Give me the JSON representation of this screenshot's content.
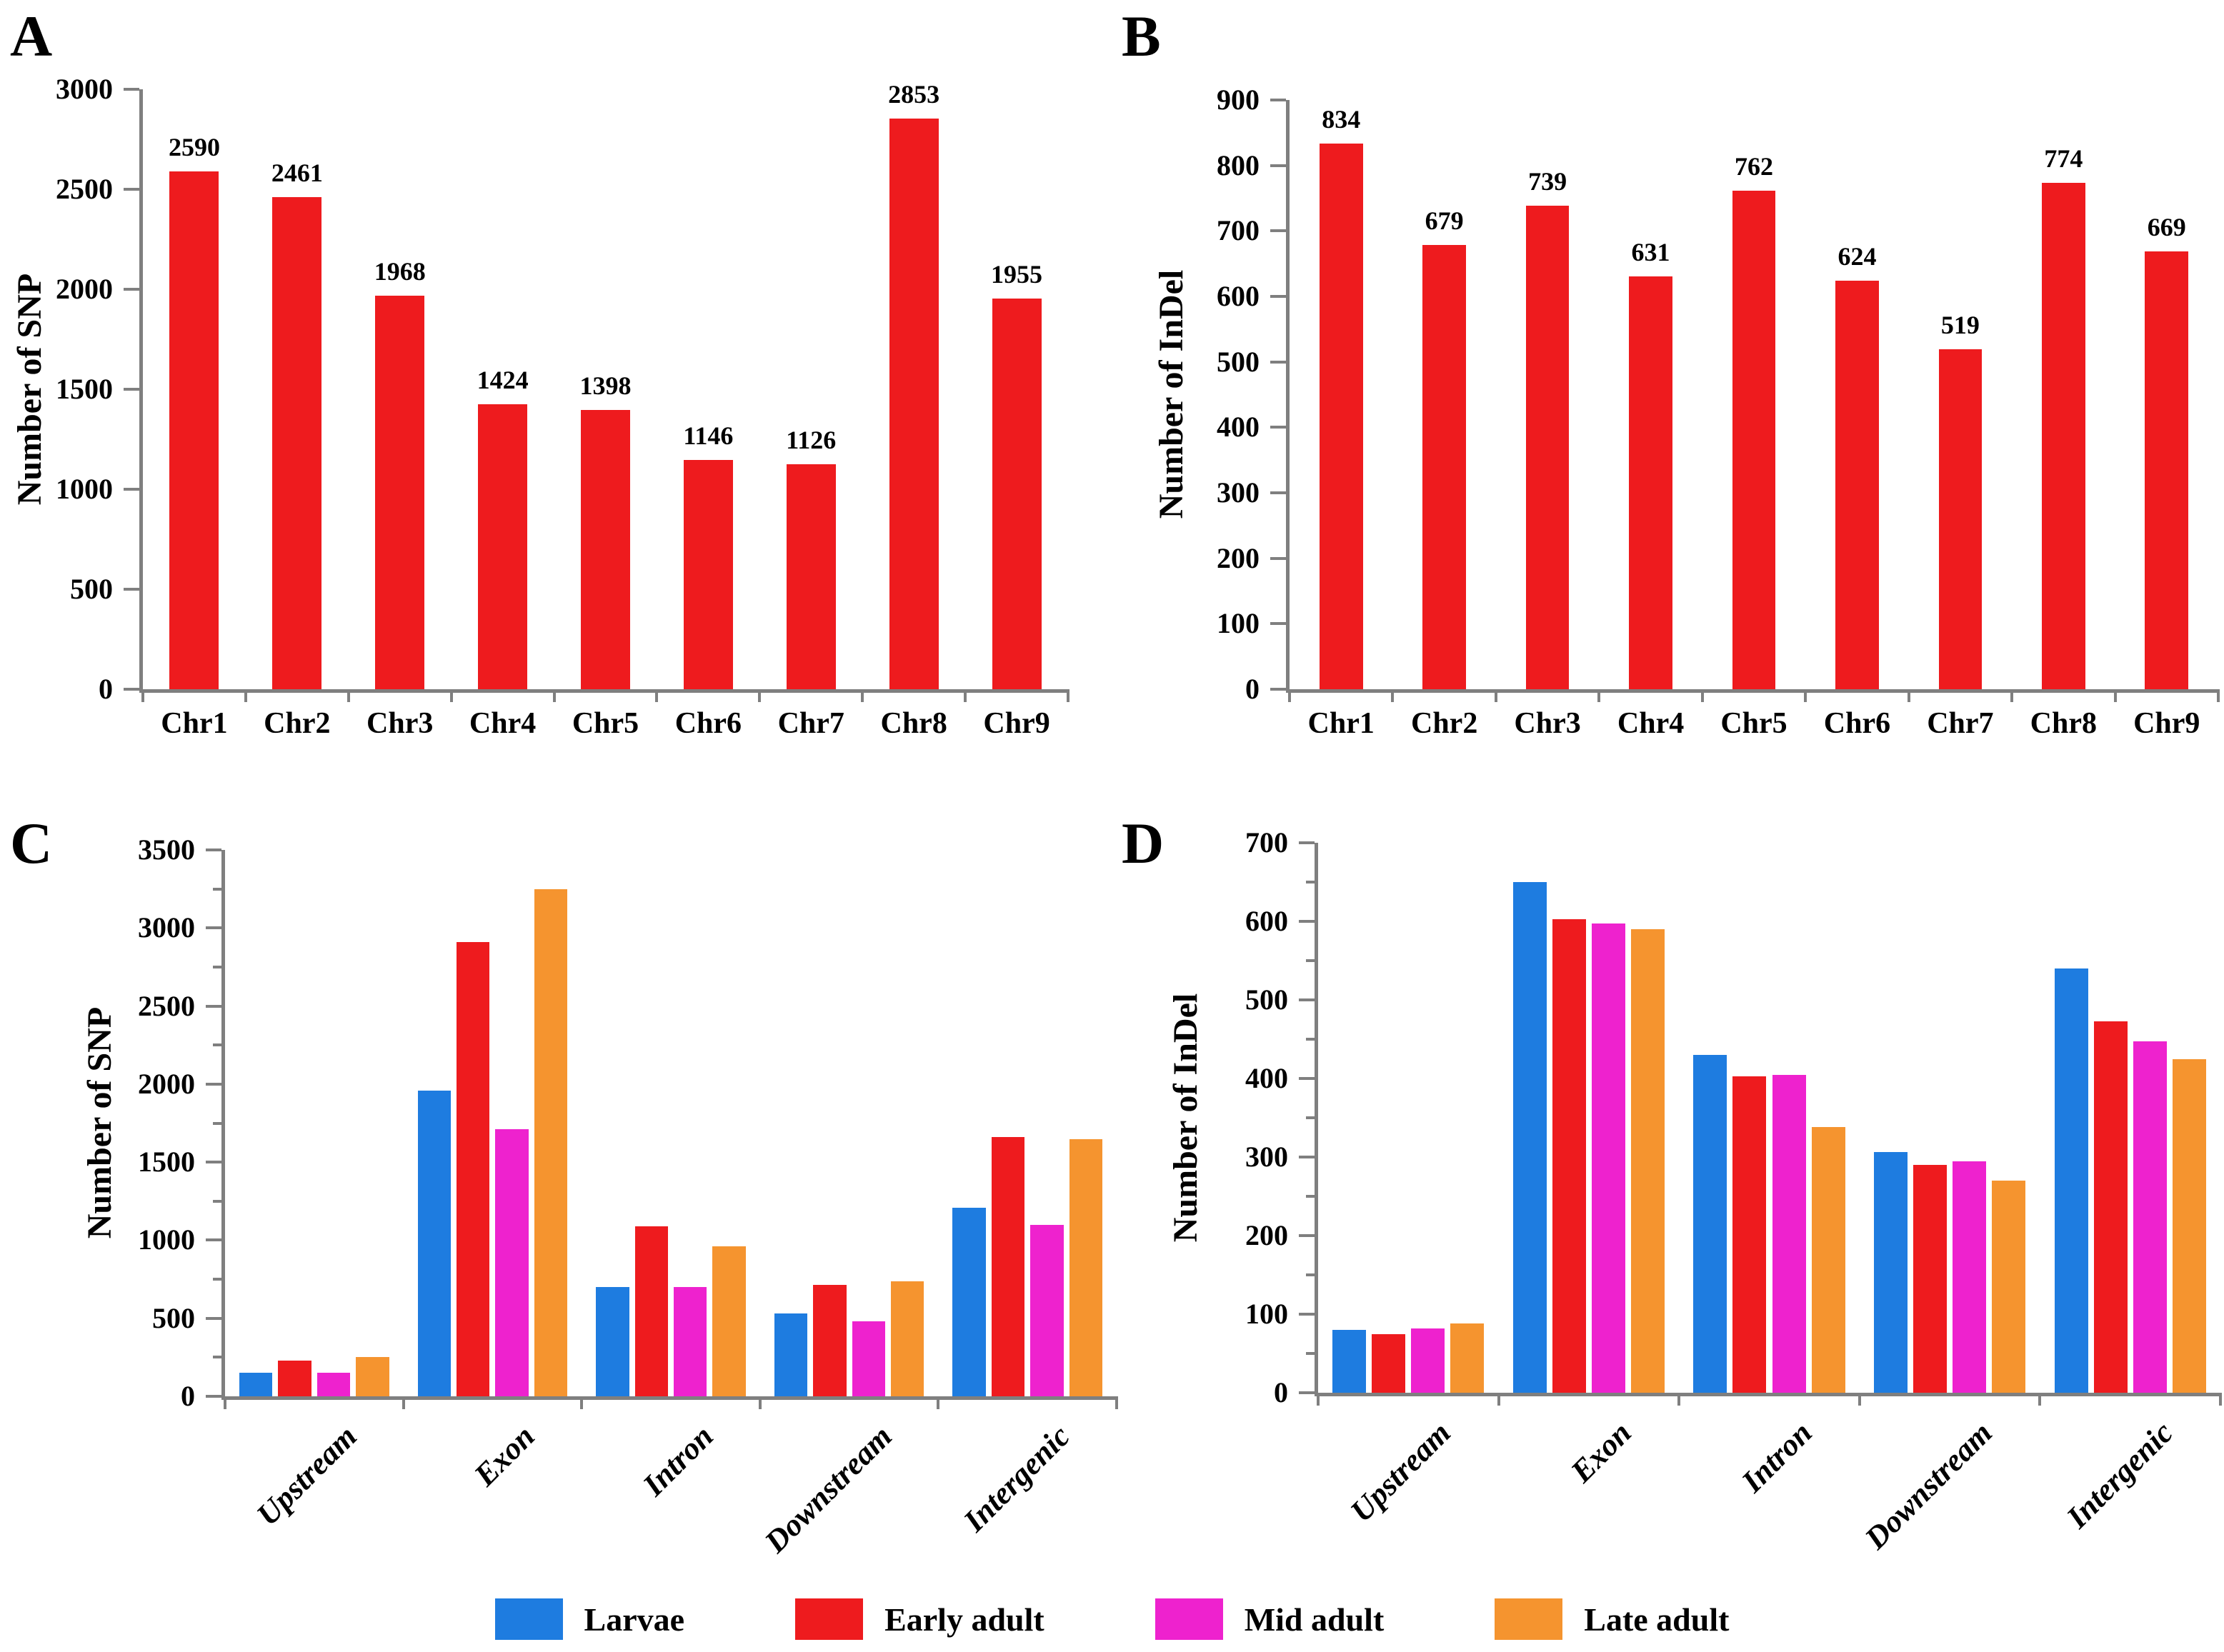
{
  "figure": {
    "axis_color": "#7f7f7f",
    "legend": {
      "items": [
        {
          "label": "Larvae",
          "color": "#1E7CE0"
        },
        {
          "label": "Early adult",
          "color": "#EE1B1E"
        },
        {
          "label": "Mid adult",
          "color": "#EE22CE"
        },
        {
          "label": "Late adult",
          "color": "#F5942F"
        }
      ]
    }
  },
  "chart_data": [
    {
      "id": "A",
      "panel_letter": "A",
      "type": "bar",
      "ylabel": "Number of SNP",
      "ylim": [
        0,
        3000
      ],
      "ytick_step": 500,
      "yticks": [
        "0",
        "500",
        "1000",
        "1500",
        "2000",
        "2500",
        "3000"
      ],
      "grid": false,
      "legend_position": "none",
      "categories": [
        "Chr1",
        "Chr2",
        "Chr3",
        "Chr4",
        "Chr5",
        "Chr6",
        "Chr7",
        "Chr8",
        "Chr9"
      ],
      "values": [
        2590,
        2461,
        1968,
        1424,
        1398,
        1146,
        1126,
        2853,
        1955
      ],
      "value_labels": [
        "2590",
        "2461",
        "1968",
        "1424",
        "1398",
        "1146",
        "1126",
        "2853",
        "1955"
      ],
      "bar_color": "#EE1B1E"
    },
    {
      "id": "B",
      "panel_letter": "B",
      "type": "bar",
      "ylabel": "Number of InDel",
      "ylim": [
        0,
        900
      ],
      "ytick_step": 100,
      "yticks": [
        "0",
        "100",
        "200",
        "300",
        "400",
        "500",
        "600",
        "700",
        "800",
        "900"
      ],
      "grid": false,
      "legend_position": "none",
      "categories": [
        "Chr1",
        "Chr2",
        "Chr3",
        "Chr4",
        "Chr5",
        "Chr6",
        "Chr7",
        "Chr8",
        "Chr9"
      ],
      "values": [
        834,
        679,
        739,
        631,
        762,
        624,
        519,
        774,
        669
      ],
      "value_labels": [
        "834",
        "679",
        "739",
        "631",
        "762",
        "624",
        "519",
        "774",
        "669"
      ],
      "bar_color": "#EE1B1E"
    },
    {
      "id": "C",
      "panel_letter": "C",
      "type": "bar",
      "grouped": true,
      "ylabel": "Number of SNP",
      "ylim": [
        0,
        3500
      ],
      "ytick_step": 500,
      "minor_tick_step": 250,
      "yticks": [
        "0",
        "500",
        "1000",
        "1500",
        "2000",
        "2500",
        "3000",
        "3500"
      ],
      "grid": false,
      "legend_position": "bottom-shared",
      "categories": [
        "Upstream",
        "Exon",
        "Intron",
        "Downstream",
        "Intergenic"
      ],
      "series": [
        {
          "name": "Larvae",
          "color": "#1E7CE0",
          "values": [
            150,
            1960,
            700,
            530,
            1210
          ]
        },
        {
          "name": "Early adult",
          "color": "#EE1B1E",
          "values": [
            230,
            2910,
            1090,
            715,
            1660
          ]
        },
        {
          "name": "Mid adult",
          "color": "#EE22CE",
          "values": [
            150,
            1710,
            700,
            480,
            1100
          ]
        },
        {
          "name": "Late adult",
          "color": "#F5942F",
          "values": [
            250,
            3250,
            960,
            735,
            1645
          ]
        }
      ]
    },
    {
      "id": "D",
      "panel_letter": "D",
      "type": "bar",
      "grouped": true,
      "ylabel": "Number of InDel",
      "ylim": [
        0,
        700
      ],
      "ytick_step": 100,
      "minor_tick_step": 50,
      "yticks": [
        "0",
        "100",
        "200",
        "300",
        "400",
        "500",
        "600",
        "700"
      ],
      "grid": false,
      "legend_position": "bottom-shared",
      "categories": [
        "Upstream",
        "Exon",
        "Intron",
        "Downstream",
        "Intergenic"
      ],
      "series": [
        {
          "name": "Larvae",
          "color": "#1E7CE0",
          "values": [
            80,
            650,
            430,
            306,
            540
          ]
        },
        {
          "name": "Early adult",
          "color": "#EE1B1E",
          "values": [
            75,
            603,
            403,
            290,
            473
          ]
        },
        {
          "name": "Mid adult",
          "color": "#EE22CE",
          "values": [
            82,
            597,
            405,
            295,
            447
          ]
        },
        {
          "name": "Late adult",
          "color": "#F5942F",
          "values": [
            88,
            590,
            338,
            270,
            425
          ]
        }
      ]
    }
  ]
}
